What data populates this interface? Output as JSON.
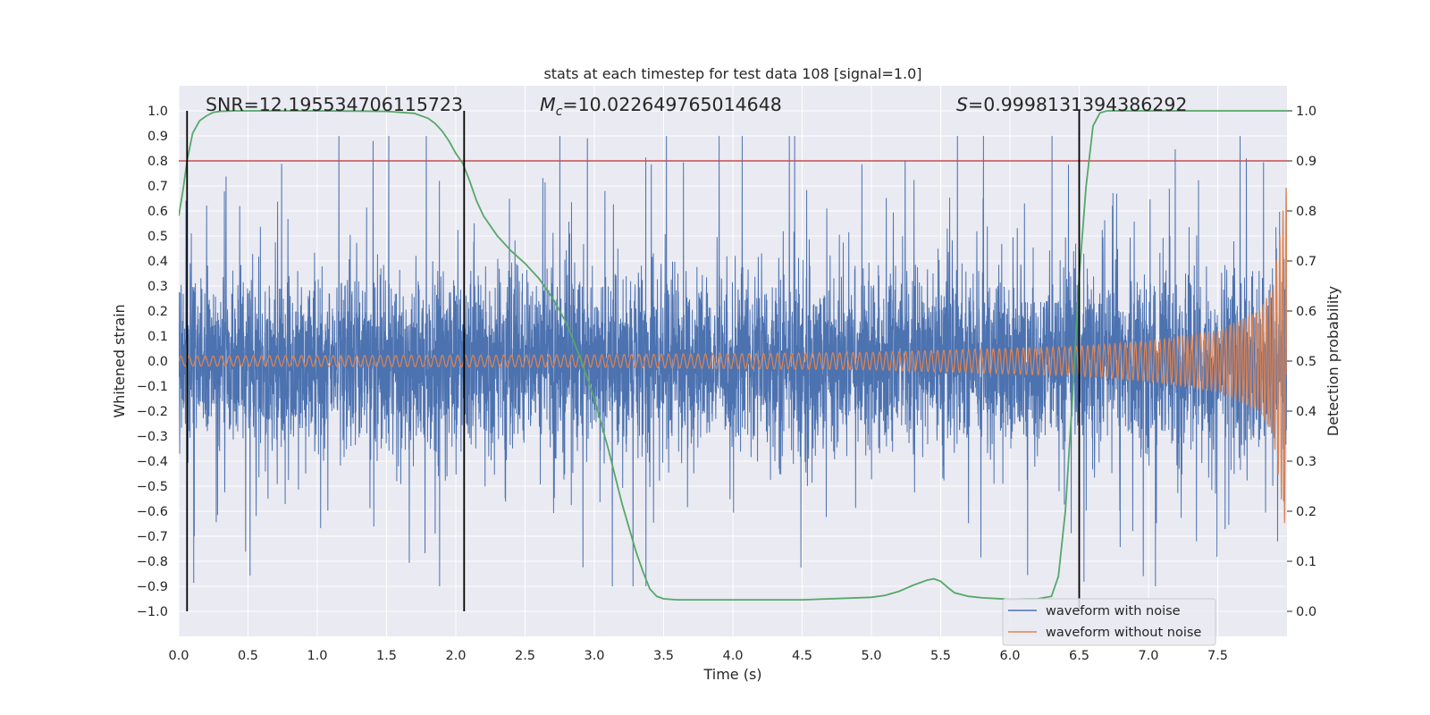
{
  "chart_data": {
    "type": "line",
    "title": "stats at each timestep for test data 108 [signal=1.0]",
    "xlabel": "Time (s)",
    "ylabel": "Whitened strain",
    "y2label": "Detection probability",
    "xlim": [
      0.0,
      8.0
    ],
    "ylim": [
      -1.1,
      1.1
    ],
    "y2lim": [
      -0.05,
      1.05
    ],
    "x_ticks": [
      "0.0",
      "0.5",
      "1.0",
      "1.5",
      "2.0",
      "2.5",
      "3.0",
      "3.5",
      "4.0",
      "4.5",
      "5.0",
      "5.5",
      "6.0",
      "6.5",
      "7.0",
      "7.5"
    ],
    "y_ticks": [
      "1.0",
      "0.9",
      "0.8",
      "0.7",
      "0.6",
      "0.5",
      "0.4",
      "0.3",
      "0.2",
      "0.1",
      "0.0",
      "−0.1",
      "−0.2",
      "−0.3",
      "−0.4",
      "−0.5",
      "−0.6",
      "−0.7",
      "−0.8",
      "−0.9",
      "−1.0"
    ],
    "y2_ticks": [
      "1.0",
      "0.9",
      "0.8",
      "0.7",
      "0.6",
      "0.5",
      "0.4",
      "0.3",
      "0.2",
      "0.1",
      "0.0"
    ],
    "grid": true,
    "legend_position": "lower-right",
    "annotations": {
      "snr": "SNR=12.195534706115723",
      "mc_symbol": "M",
      "mc_sub": "c",
      "mc_value": "=10.022649765014648",
      "s_symbol": "S",
      "s_value": "=0.9998131394386292"
    },
    "threshold": {
      "value": 0.9,
      "axis": "right",
      "color": "#c44e52"
    },
    "vertical_lines": [
      0.06,
      2.06,
      6.5
    ],
    "series": [
      {
        "name": "waveform with noise",
        "axis": "left",
        "color": "#4c72b0",
        "envelope": {
          "noise_sigma": 0.17,
          "peak_max": 0.9,
          "peak_min": -0.9
        },
        "note_values": "dense noise, approx. -0.9 to 0.9"
      },
      {
        "name": "waveform without noise",
        "axis": "left",
        "color": "#dd8452",
        "chirp": {
          "t_end": 8.0,
          "amplitude": [
            [
              0.0,
              0.02
            ],
            [
              3.0,
              0.025
            ],
            [
              5.0,
              0.035
            ],
            [
              6.5,
              0.06
            ],
            [
              7.0,
              0.08
            ],
            [
              7.5,
              0.12
            ],
            [
              7.8,
              0.2
            ],
            [
              7.9,
              0.3
            ],
            [
              7.97,
              0.6
            ],
            [
              8.0,
              0.72
            ]
          ],
          "frequency_hz": [
            [
              0.0,
              17
            ],
            [
              4.0,
              19
            ],
            [
              6.5,
              24
            ],
            [
              7.5,
              33
            ],
            [
              8.0,
              44
            ]
          ]
        }
      },
      {
        "name": "detection probability",
        "axis": "right",
        "color": "#55a868",
        "x": [
          0.0,
          0.03,
          0.06,
          0.1,
          0.15,
          0.2,
          0.25,
          0.3,
          0.4,
          0.6,
          1.0,
          1.5,
          1.7,
          1.8,
          1.85,
          1.9,
          1.95,
          2.0,
          2.05,
          2.1,
          2.15,
          2.2,
          2.3,
          2.4,
          2.5,
          2.6,
          2.7,
          2.8,
          2.9,
          3.0,
          3.1,
          3.2,
          3.3,
          3.35,
          3.4,
          3.45,
          3.5,
          3.6,
          4.0,
          4.5,
          5.0,
          5.1,
          5.2,
          5.3,
          5.4,
          5.45,
          5.5,
          5.55,
          5.6,
          5.7,
          5.8,
          6.0,
          6.2,
          6.3,
          6.35,
          6.4,
          6.45,
          6.5,
          6.55,
          6.6,
          6.65,
          6.7,
          7.0,
          7.5,
          8.0
        ],
        "y": [
          0.79,
          0.84,
          0.9,
          0.955,
          0.98,
          0.99,
          0.997,
          0.999,
          1.0,
          1.0,
          1.0,
          0.999,
          0.995,
          0.985,
          0.975,
          0.96,
          0.94,
          0.915,
          0.895,
          0.86,
          0.82,
          0.79,
          0.75,
          0.72,
          0.695,
          0.665,
          0.625,
          0.575,
          0.505,
          0.425,
          0.325,
          0.215,
          0.12,
          0.08,
          0.045,
          0.03,
          0.025,
          0.023,
          0.023,
          0.023,
          0.028,
          0.032,
          0.04,
          0.052,
          0.062,
          0.065,
          0.06,
          0.048,
          0.037,
          0.03,
          0.027,
          0.024,
          0.025,
          0.03,
          0.07,
          0.2,
          0.42,
          0.67,
          0.85,
          0.97,
          0.996,
          1.0,
          1.0,
          1.0,
          1.0
        ]
      }
    ]
  }
}
